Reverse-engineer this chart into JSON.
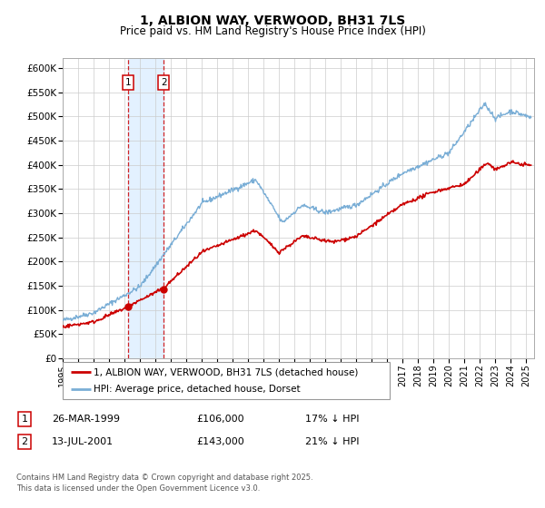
{
  "title": "1, ALBION WAY, VERWOOD, BH31 7LS",
  "subtitle": "Price paid vs. HM Land Registry's House Price Index (HPI)",
  "ylim": [
    0,
    620000
  ],
  "yticks": [
    0,
    50000,
    100000,
    150000,
    200000,
    250000,
    300000,
    350000,
    400000,
    450000,
    500000,
    550000,
    600000
  ],
  "ytick_labels": [
    "£0",
    "£50K",
    "£100K",
    "£150K",
    "£200K",
    "£250K",
    "£300K",
    "£350K",
    "£400K",
    "£450K",
    "£500K",
    "£550K",
    "£600K"
  ],
  "xlim_start": 1995.0,
  "xlim_end": 2025.5,
  "xticks": [
    1995,
    1996,
    1997,
    1998,
    1999,
    2000,
    2001,
    2002,
    2003,
    2004,
    2005,
    2006,
    2007,
    2008,
    2009,
    2010,
    2011,
    2012,
    2013,
    2014,
    2015,
    2016,
    2017,
    2018,
    2019,
    2020,
    2021,
    2022,
    2023,
    2024,
    2025
  ],
  "legend_entries": [
    "1, ALBION WAY, VERWOOD, BH31 7LS (detached house)",
    "HPI: Average price, detached house, Dorset"
  ],
  "legend_colors": [
    "#cc0000",
    "#7aaed6"
  ],
  "transaction1_date": 1999.23,
  "transaction1_price": 106000,
  "transaction2_date": 2001.54,
  "transaction2_price": 143000,
  "footer": "Contains HM Land Registry data © Crown copyright and database right 2025.\nThis data is licensed under the Open Government Licence v3.0.",
  "grid_color": "#cccccc",
  "hpi_line_color": "#7aaed6",
  "price_line_color": "#cc0000",
  "shaded_region_color": "#ddeeff",
  "title_fontsize": 10,
  "subtitle_fontsize": 8.5
}
